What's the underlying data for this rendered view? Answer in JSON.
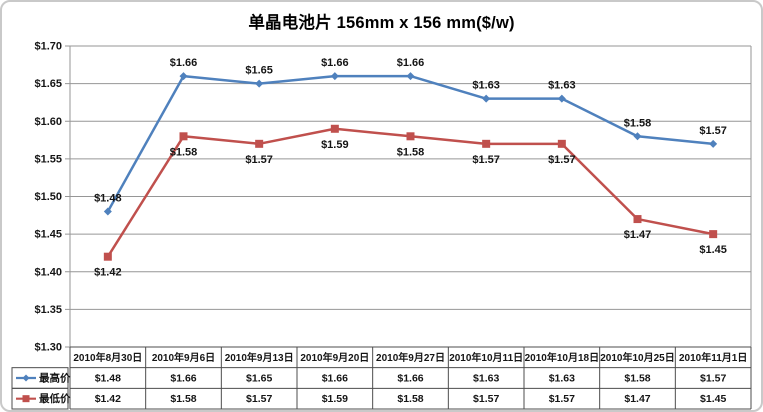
{
  "title": "单晶电池片 156mm x 156 mm($/w)",
  "chart_data": {
    "type": "line",
    "title": "单晶电池片 156mm x 156 mm($/w)",
    "categories": [
      "2010年8月30日",
      "2010年9月6日",
      "2010年9月13日",
      "2010年9月20日",
      "2010年9月27日",
      "2010年10月11日",
      "2010年10月18日",
      "2010年10月25日",
      "2010年11月1日"
    ],
    "series": [
      {
        "name": "最高价",
        "color": "#4F81BD",
        "marker": "diamond",
        "label_position": "above",
        "values": [
          1.48,
          1.66,
          1.65,
          1.66,
          1.66,
          1.63,
          1.63,
          1.58,
          1.57
        ]
      },
      {
        "name": "最低价",
        "color": "#C0504D",
        "marker": "square",
        "label_position": "below",
        "values": [
          1.42,
          1.58,
          1.57,
          1.59,
          1.58,
          1.57,
          1.57,
          1.47,
          1.45
        ]
      }
    ],
    "ylim": [
      1.3,
      1.7
    ],
    "y_step": 0.05,
    "value_prefix": "$",
    "value_decimals": 2,
    "y_tick_labels": [
      "$1.30",
      "$1.35",
      "$1.40",
      "$1.45",
      "$1.50",
      "$1.55",
      "$1.60",
      "$1.65",
      "$1.70"
    ],
    "grid": true,
    "data_labels": true,
    "data_table": true,
    "legend_position": "left-of-data-table"
  },
  "colors": {
    "series_high": "#4F81BD",
    "series_low": "#C0504D",
    "gridline": "#969696",
    "axis": "#969696",
    "table_border": "#4D4D4D",
    "text": "#151515",
    "frame_border": "#C9C9C9",
    "background": "#FFFFFF"
  }
}
